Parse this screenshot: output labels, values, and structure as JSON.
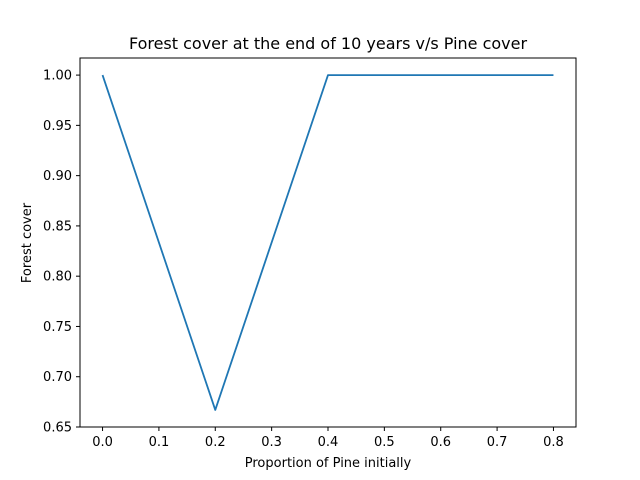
{
  "chart_data": {
    "type": "line",
    "title": "Forest cover at the end of 10 years v/s Pine cover",
    "xlabel": "Proportion of Pine initially",
    "ylabel": "Forest cover",
    "x": [
      0.0,
      0.2,
      0.4,
      0.6,
      0.8
    ],
    "series": [
      {
        "values": [
          1.0,
          0.667,
          1.0,
          1.0,
          1.0
        ]
      }
    ],
    "xlim": [
      -0.04,
      0.84
    ],
    "ylim": [
      0.65,
      1.017
    ],
    "xticks": [
      0.0,
      0.1,
      0.2,
      0.3,
      0.4,
      0.5,
      0.6,
      0.7,
      0.8
    ],
    "xtick_labels": [
      "0.0",
      "0.1",
      "0.2",
      "0.3",
      "0.4",
      "0.5",
      "0.6",
      "0.7",
      "0.8"
    ],
    "yticks": [
      0.65,
      0.7,
      0.75,
      0.8,
      0.85,
      0.9,
      0.95,
      1.0
    ],
    "ytick_labels": [
      "0.65",
      "0.70",
      "0.75",
      "0.80",
      "0.85",
      "0.90",
      "0.95",
      "1.00"
    ],
    "grid": false,
    "line_color": "#1f77b4"
  }
}
